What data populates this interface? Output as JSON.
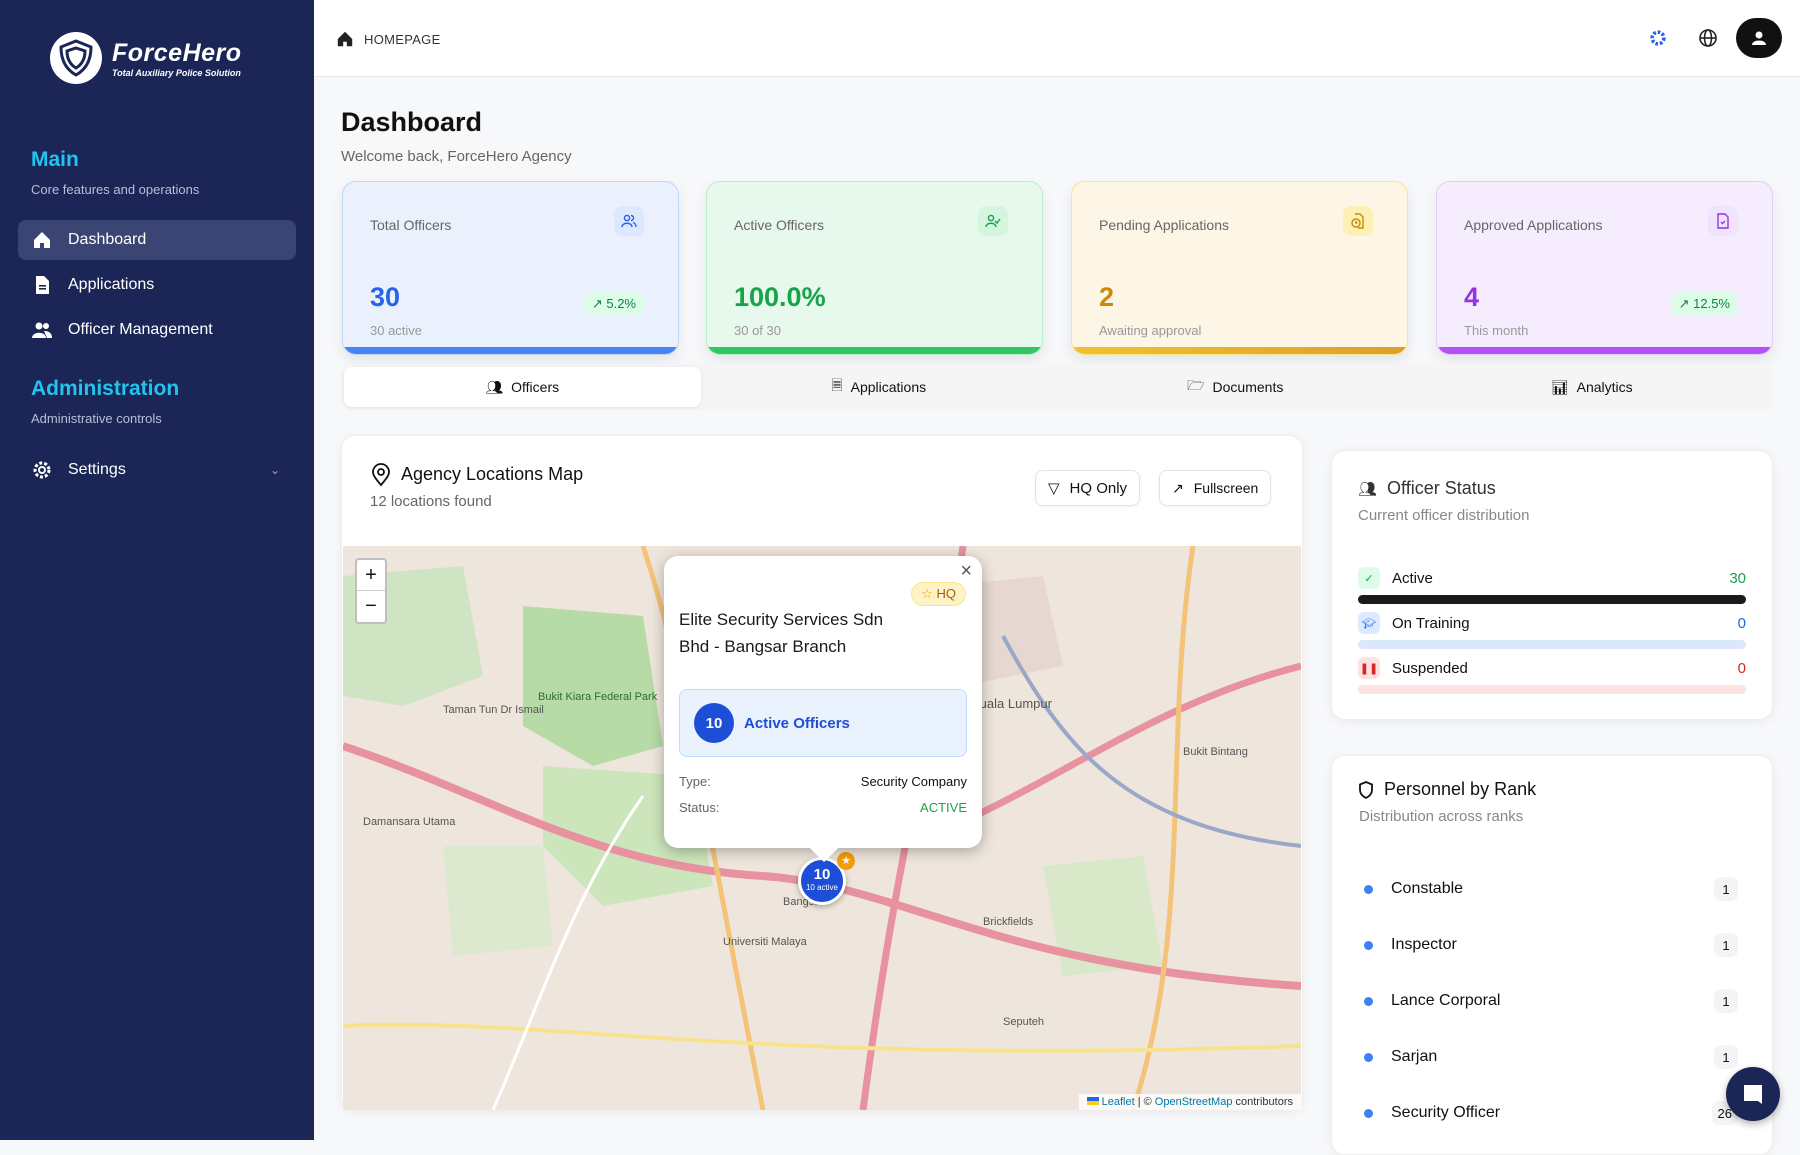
{
  "brand": {
    "name": "ForceHero",
    "tagline": "Total Auxiliary Police Solution"
  },
  "sidebar": {
    "sections": [
      {
        "title": "Main",
        "subtitle": "Core features and operations"
      },
      {
        "title": "Administration",
        "subtitle": "Administrative controls"
      }
    ],
    "items": [
      {
        "label": "Dashboard",
        "icon": "home-icon",
        "active": true
      },
      {
        "label": "Applications",
        "icon": "file-icon"
      },
      {
        "label": "Officer Management",
        "icon": "users-icon"
      },
      {
        "label": "Settings",
        "icon": "gear-icon"
      }
    ]
  },
  "header": {
    "breadcrumb": "HOMEPAGE",
    "icons": [
      "gear-icon",
      "globe-icon",
      "user-icon"
    ]
  },
  "page": {
    "title": "Dashboard",
    "welcome": "Welcome back, ForceHero Agency"
  },
  "stats": [
    {
      "label": "Total Officers",
      "value": "30",
      "sub": "30 active",
      "trend": "5.2%",
      "color": "#2563eb"
    },
    {
      "label": "Active Officers",
      "value": "100.0%",
      "sub": "30 of 30",
      "color": "#16a34a"
    },
    {
      "label": "Pending Applications",
      "value": "2",
      "sub": "Awaiting approval",
      "color": "#ca8a04"
    },
    {
      "label": "Approved Applications",
      "value": "4",
      "sub": "This month",
      "trend": "12.5%",
      "color": "#9333ea"
    }
  ],
  "tabs": [
    {
      "label": "Officers",
      "active": true
    },
    {
      "label": "Applications"
    },
    {
      "label": "Documents"
    },
    {
      "label": "Analytics"
    }
  ],
  "map": {
    "title": "Agency Locations Map",
    "subtitle": "12 locations found",
    "hq_button": "HQ Only",
    "fullscreen_button": "Fullscreen",
    "zoom_in": "+",
    "zoom_out": "−",
    "labels": [
      "Kuala Lumpur",
      "Bangsar",
      "Brickfields",
      "Bukit Bintang",
      "Universiti Malaya",
      "Damansara Utama",
      "Taman Tun Dr Ismail",
      "Bukit Kiara Federal Park",
      "Seputeh"
    ],
    "marker": {
      "count": "10",
      "sub": "10 active"
    },
    "popup": {
      "title": "Elite Security Services Sdn Bhd - Bangsar Branch",
      "badge": "HQ",
      "officers_count": "10",
      "officers_label": "Active Officers",
      "type_label": "Type:",
      "type_value": "Security Company",
      "status_label": "Status:",
      "status_value": "ACTIVE"
    },
    "attribution": {
      "leaflet": "Leaflet",
      "sep": "| ©",
      "osm": "OpenStreetMap",
      "contrib": "contributors"
    }
  },
  "officer_status": {
    "title": "Officer Status",
    "subtitle": "Current officer distribution",
    "rows": [
      {
        "label": "Active",
        "value": "30",
        "fraction": 1.0,
        "color": "#16a34a"
      },
      {
        "label": "On Training",
        "value": "0",
        "fraction": 0,
        "color": "#2563eb"
      },
      {
        "label": "Suspended",
        "value": "0",
        "fraction": 0,
        "color": "#dc2626"
      }
    ]
  },
  "ranks": {
    "title": "Personnel by Rank",
    "subtitle": "Distribution across ranks",
    "rows": [
      {
        "label": "Constable",
        "count": "1"
      },
      {
        "label": "Inspector",
        "count": "1"
      },
      {
        "label": "Lance Corporal",
        "count": "1"
      },
      {
        "label": "Sarjan",
        "count": "1"
      },
      {
        "label": "Security Officer",
        "count": "26"
      }
    ]
  }
}
